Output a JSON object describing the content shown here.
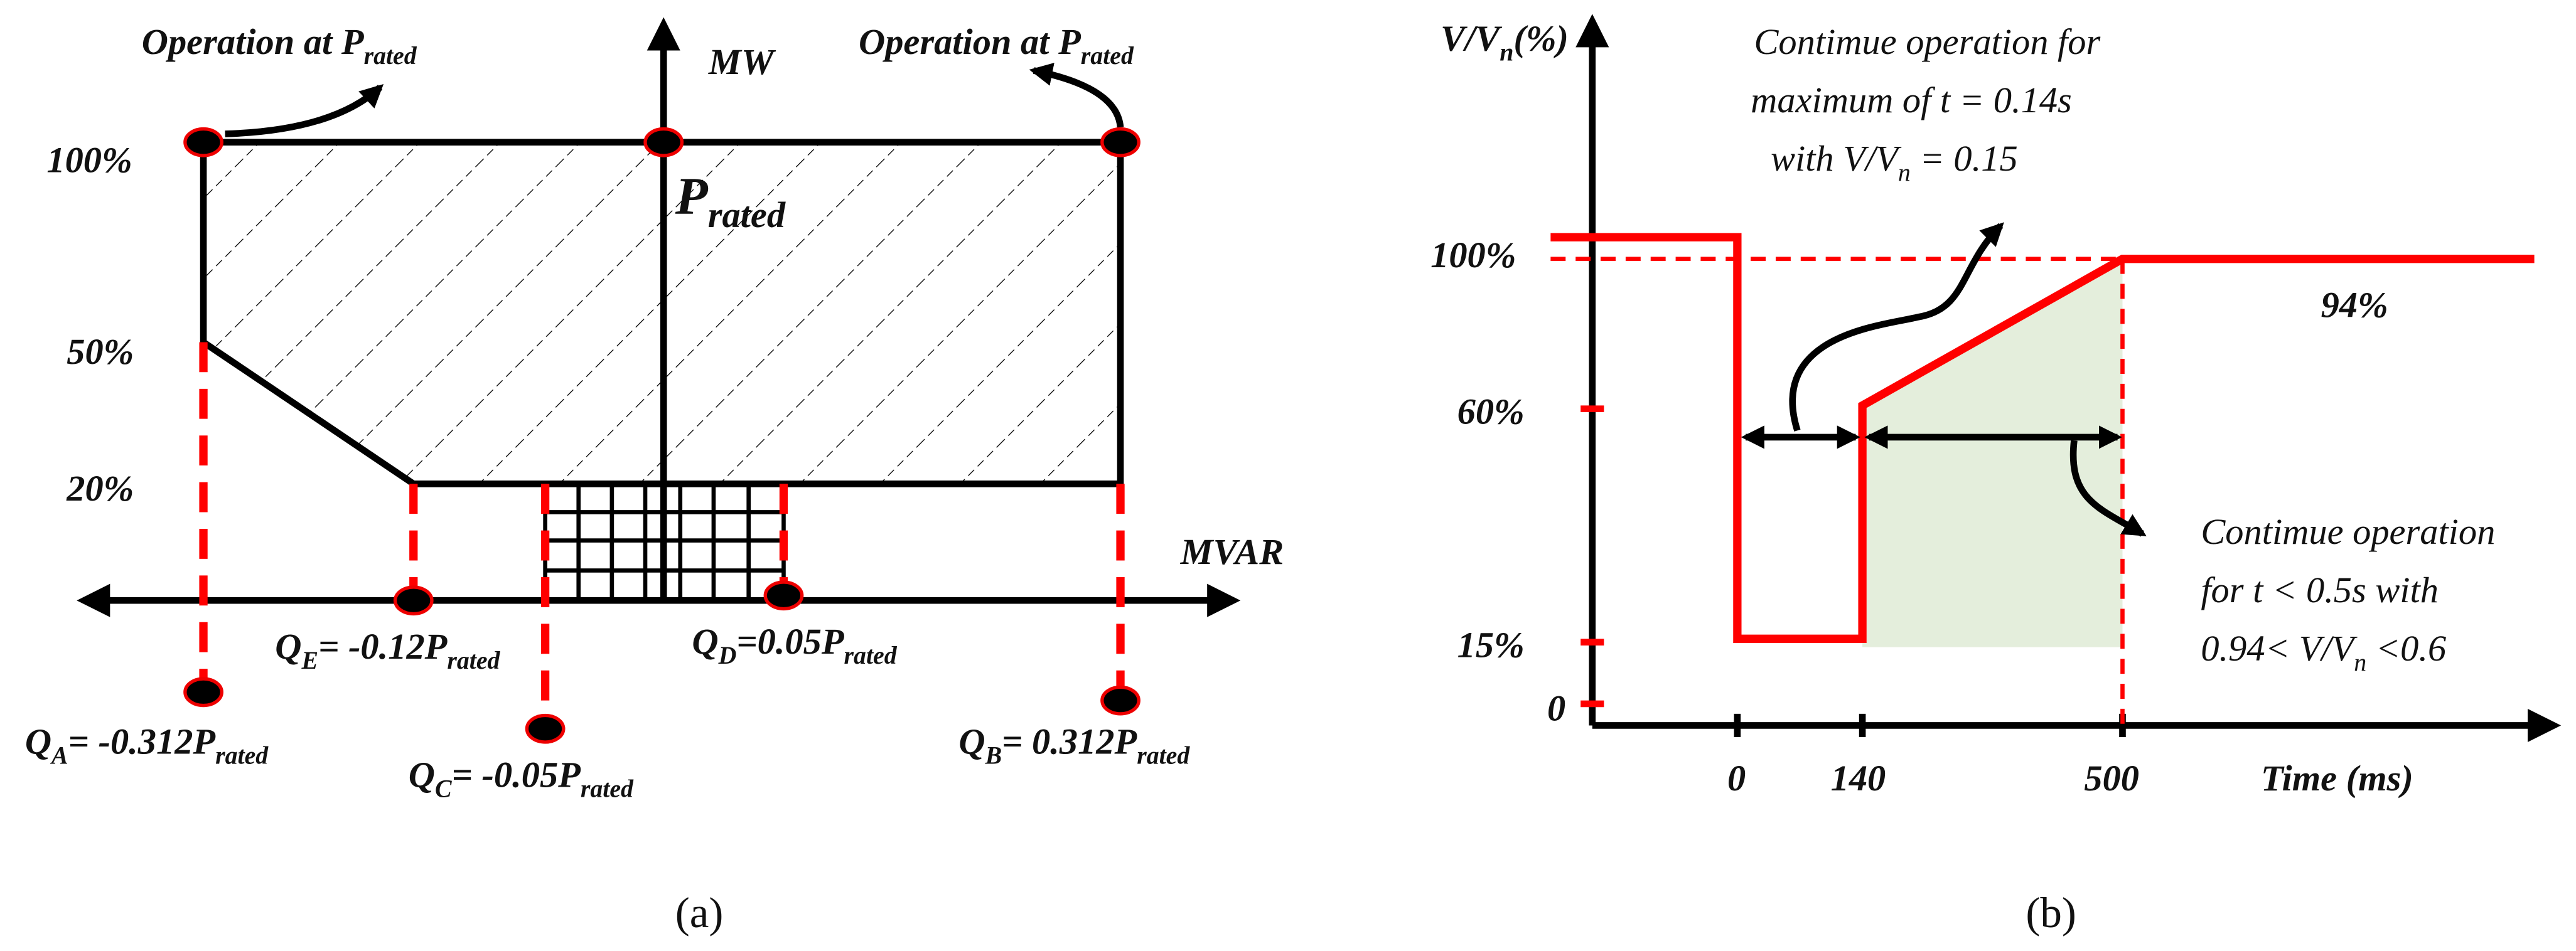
{
  "panel_a": {
    "label": "(a)",
    "y_axis_label": "MW",
    "x_axis_label": "MVAR",
    "y_levels": [
      "100%",
      "50%",
      "20%"
    ],
    "operation_left": {
      "text": "Operation at P",
      "sub": "rated"
    },
    "operation_right": {
      "text": "Operation at P",
      "sub": "rated"
    },
    "p_rated": {
      "text": "P",
      "sub": "rated"
    },
    "q_points": [
      {
        "q": "Q",
        "index": "A",
        "eq": "= -0.312P",
        "sub": "rated"
      },
      {
        "q": "Q",
        "index": "E",
        "eq": "= -0.12P",
        "sub": "rated"
      },
      {
        "q": "Q",
        "index": "D",
        "eq": "=0.05P",
        "sub": "rated"
      },
      {
        "q": "Q",
        "index": "C",
        "eq": "= -0.05P",
        "sub": "rated"
      },
      {
        "q": "Q",
        "index": "B",
        "eq": "= 0.312P",
        "sub": "rated"
      }
    ]
  },
  "panel_b": {
    "label": "(b)",
    "y_axis_label": {
      "text": "V/V",
      "sub": "n",
      "rest": "(%)"
    },
    "y_ticks": [
      "100%",
      "60%",
      "15%",
      "0"
    ],
    "x_ticks": [
      "0",
      "140",
      "500"
    ],
    "x_axis_label": "Time (ms)",
    "steady_label": "94%",
    "annotation_top": {
      "line1": "Contimue operation for",
      "line2": "maximum of t = 0.14s",
      "line3": {
        "text": "with V/V",
        "sub": "n",
        "rest": " = 0.15"
      }
    },
    "annotation_right": {
      "line1": "Contimue operation",
      "line2": "for t < 0.5s with",
      "line3": {
        "text": "0.94< V/V",
        "sub": "n",
        "rest": " <0.6"
      }
    }
  }
}
